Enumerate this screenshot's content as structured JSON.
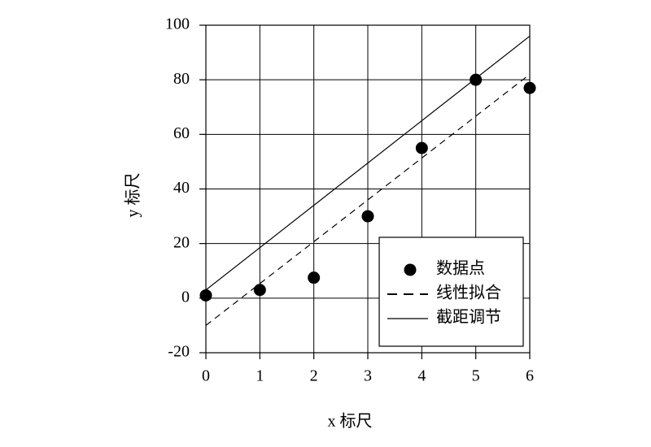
{
  "chart_data": {
    "type": "scatter",
    "x_label": "x 标尺",
    "y_label": "y 标尺",
    "xlim": [
      0,
      6
    ],
    "ylim": [
      -20,
      100
    ],
    "xticks": [
      0,
      1,
      2,
      3,
      4,
      5,
      6
    ],
    "yticks": [
      -20,
      0,
      20,
      40,
      60,
      80,
      100
    ],
    "grid": true,
    "legend": "lower right",
    "series": [
      {
        "name": "数据点",
        "color": "#000000",
        "mode": "markers",
        "x": [
          0,
          1,
          2,
          3,
          4,
          5,
          6
        ],
        "values": [
          1,
          3,
          7.5,
          30,
          55,
          80,
          77
        ]
      },
      {
        "name": "线性拟合",
        "color": "#000000",
        "mode": "dashed",
        "x": [
          0,
          6
        ],
        "values": [
          -10,
          82
        ]
      },
      {
        "name": "截距调节",
        "color": "#000000",
        "mode": "solid",
        "x": [
          0,
          6
        ],
        "values": [
          3,
          96
        ]
      }
    ]
  }
}
